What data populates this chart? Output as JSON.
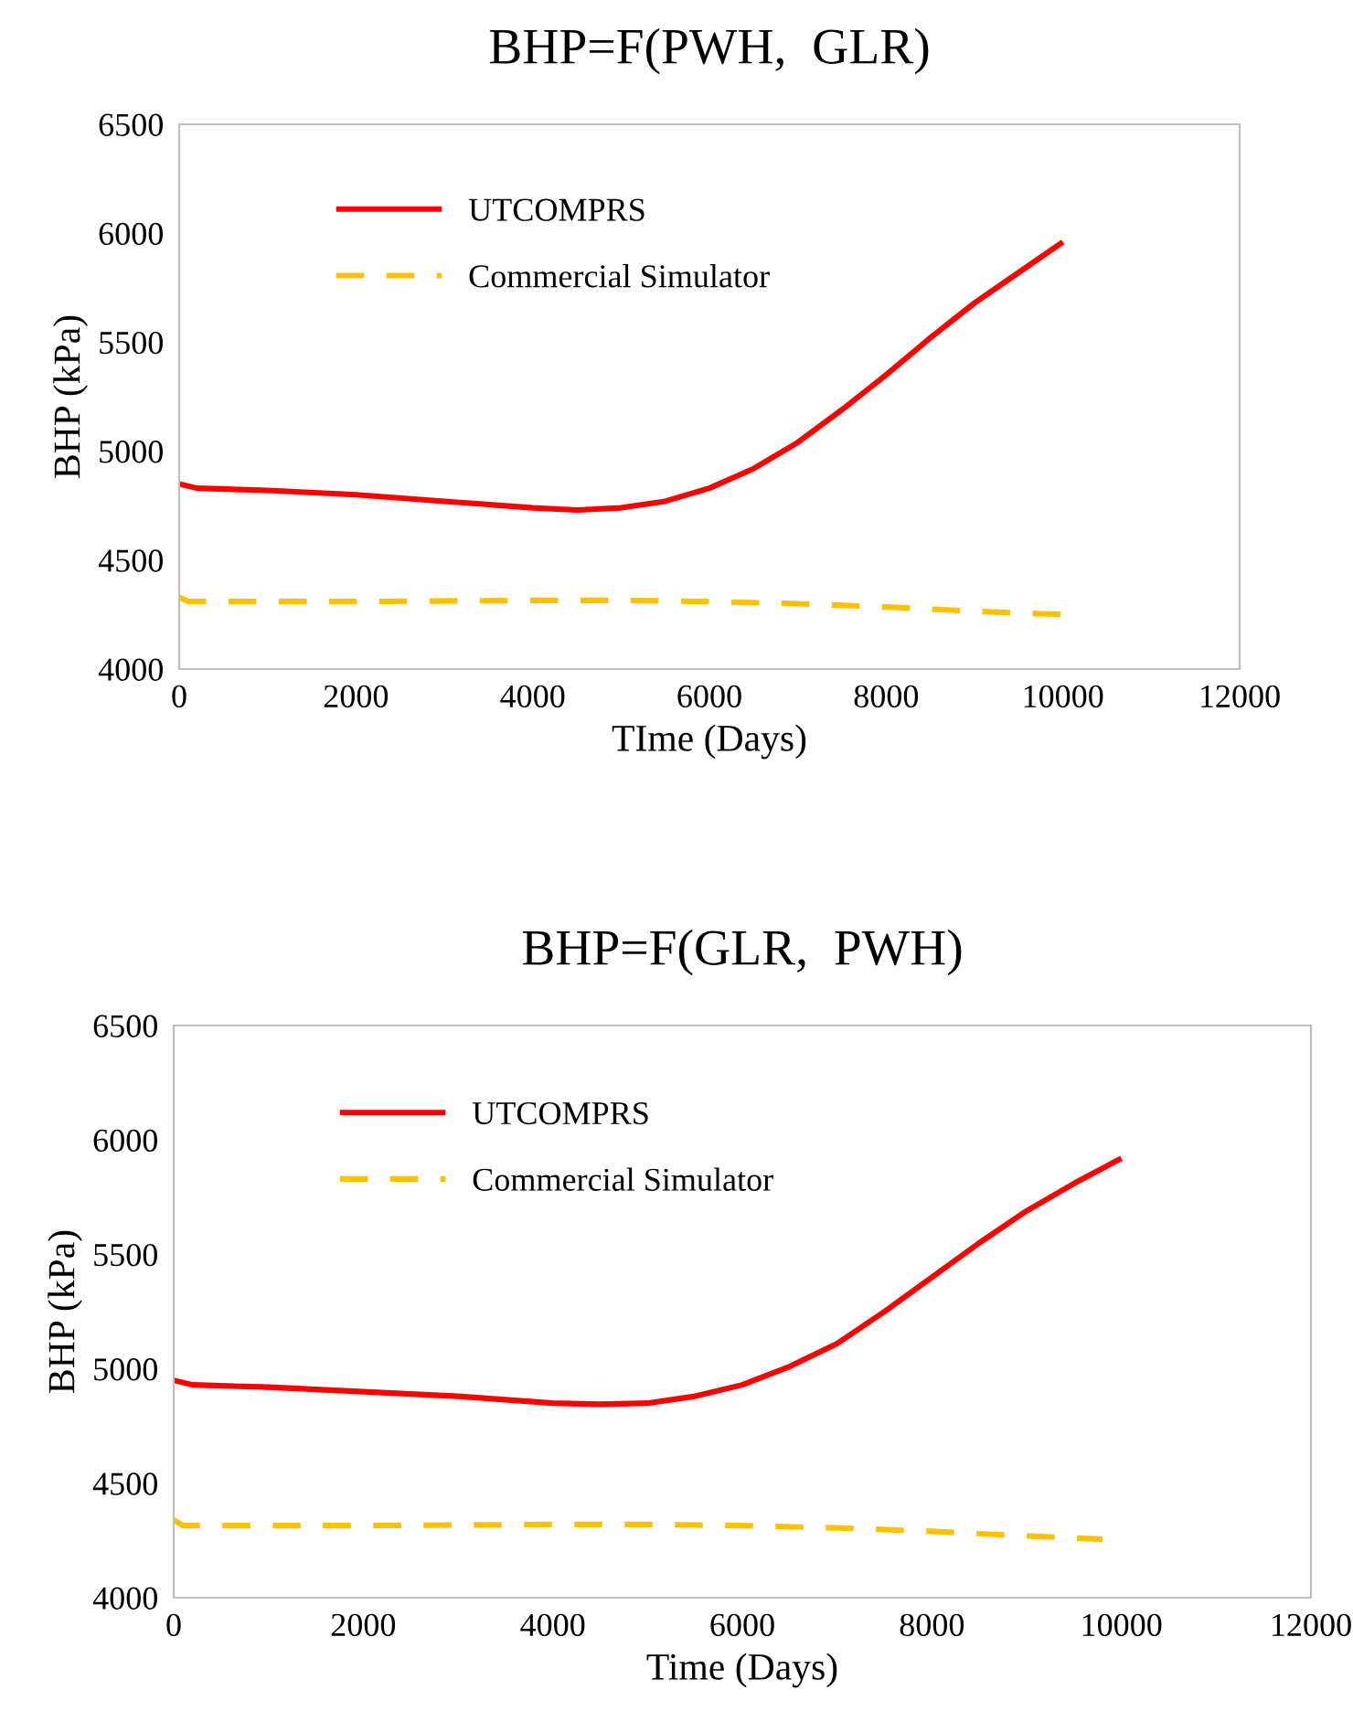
{
  "chart_data": [
    {
      "type": "line",
      "title": "BHP=F(PWH,  GLR)",
      "xlabel": "TIme (Days)",
      "ylabel": "BHP (kPa)",
      "xlim": [
        0,
        12000
      ],
      "xticks": [
        0,
        2000,
        4000,
        6000,
        8000,
        10000,
        12000
      ],
      "ylim": [
        4000,
        6500
      ],
      "yticks": [
        4000,
        4500,
        5000,
        5500,
        6000,
        6500
      ],
      "grid": false,
      "legend": "top left",
      "series": [
        {
          "name": "UTCOMPRS",
          "color": "#ff0000",
          "line_style": "solid",
          "x": [
            0,
            200,
            1000,
            2000,
            3000,
            4000,
            4500,
            5000,
            5500,
            6000,
            6500,
            7000,
            7500,
            8000,
            8500,
            9000,
            9500,
            10000
          ],
          "values": [
            4850,
            4830,
            4820,
            4800,
            4770,
            4740,
            4730,
            4740,
            4770,
            4830,
            4920,
            5040,
            5190,
            5350,
            5520,
            5680,
            5820,
            5960
          ]
        },
        {
          "name": "Commercial Simulator",
          "color": "#ffc000",
          "line_style": "dashed",
          "x": [
            0,
            100,
            2000,
            4000,
            5000,
            6000,
            7000,
            8000,
            9000,
            10000
          ],
          "values": [
            4330,
            4310,
            4310,
            4315,
            4315,
            4310,
            4300,
            4285,
            4265,
            4250
          ]
        }
      ]
    },
    {
      "type": "line",
      "title": "BHP=F(GLR,  PWH)",
      "xlabel": "Time (Days)",
      "ylabel": "BHP (kPa)",
      "xlim": [
        0,
        12000
      ],
      "xticks": [
        0,
        2000,
        4000,
        6000,
        8000,
        10000,
        12000
      ],
      "ylim": [
        4000,
        6500
      ],
      "yticks": [
        4000,
        4500,
        5000,
        5500,
        6000,
        6500
      ],
      "grid": false,
      "legend": "top left",
      "series": [
        {
          "name": "UTCOMPRS",
          "color": "#ff0000",
          "line_style": "solid",
          "x": [
            0,
            200,
            1000,
            2000,
            3000,
            4000,
            4500,
            5000,
            5500,
            6000,
            6500,
            7000,
            7500,
            8000,
            8500,
            9000,
            9500,
            10000
          ],
          "values": [
            4950,
            4930,
            4920,
            4900,
            4880,
            4850,
            4845,
            4850,
            4880,
            4930,
            5010,
            5110,
            5250,
            5400,
            5550,
            5690,
            5810,
            5920
          ]
        },
        {
          "name": "Commercial Simulator",
          "color": "#ffc000",
          "line_style": "dashed",
          "x": [
            0,
            100,
            2000,
            4000,
            5000,
            6000,
            7000,
            8000,
            9000,
            9800
          ],
          "values": [
            4340,
            4315,
            4315,
            4320,
            4320,
            4315,
            4305,
            4290,
            4270,
            4255
          ]
        }
      ]
    }
  ]
}
